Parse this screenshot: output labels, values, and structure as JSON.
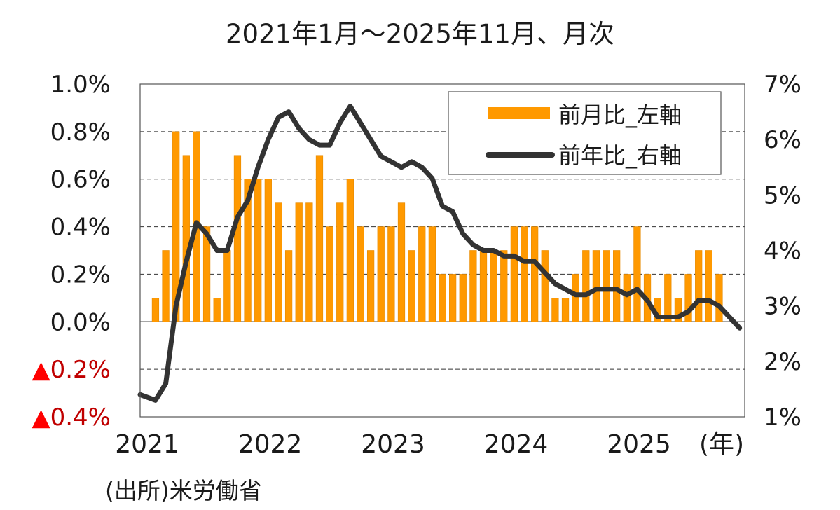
{
  "title": "2021年1月～2025年11月、月次",
  "source": "(出所)米労働省",
  "colors": {
    "bar": "#FF9900",
    "bar_edge": "#E68A00",
    "line": "#333333",
    "neg_triangle": "#FF0000",
    "neg_text": "#C00000",
    "grid": "#333333"
  },
  "chart_data": {
    "type": "bar+line",
    "title": "2021年1月～2025年11月、月次",
    "xlabel": "(年)",
    "ylabel_left": "前月比",
    "ylabel_right": "前年比",
    "legend": [
      "前月比_左軸",
      "前年比_右軸"
    ],
    "legend_position": "upper right",
    "grid": true,
    "left_axis": {
      "ylim": [
        -0.4,
        1.0
      ],
      "ticks": [
        "▲0.4%",
        "▲0.2%",
        "0.0%",
        "0.2%",
        "0.4%",
        "0.6%",
        "0.8%",
        "1.0%"
      ]
    },
    "right_axis": {
      "ylim": [
        1,
        7
      ],
      "ticks": [
        "1%",
        "2%",
        "3%",
        "4%",
        "5%",
        "6%",
        "7%"
      ]
    },
    "x_tick_labels": [
      "2021",
      "2022",
      "2023",
      "2024",
      "2025"
    ],
    "x": [
      "2021-01",
      "2021-02",
      "2021-03",
      "2021-04",
      "2021-05",
      "2021-06",
      "2021-07",
      "2021-08",
      "2021-09",
      "2021-10",
      "2021-11",
      "2021-12",
      "2022-01",
      "2022-02",
      "2022-03",
      "2022-04",
      "2022-05",
      "2022-06",
      "2022-07",
      "2022-08",
      "2022-09",
      "2022-10",
      "2022-11",
      "2022-12",
      "2023-01",
      "2023-02",
      "2023-03",
      "2023-04",
      "2023-05",
      "2023-06",
      "2023-07",
      "2023-08",
      "2023-09",
      "2023-10",
      "2023-11",
      "2023-12",
      "2024-01",
      "2024-02",
      "2024-03",
      "2024-04",
      "2024-05",
      "2024-06",
      "2024-07",
      "2024-08",
      "2024-09",
      "2024-10",
      "2024-11",
      "2024-12",
      "2025-01",
      "2025-02",
      "2025-03",
      "2025-04",
      "2025-05",
      "2025-06",
      "2025-07",
      "2025-08",
      "2025-09",
      "2025-10",
      "2025-11"
    ],
    "series": [
      {
        "name": "前月比_左軸",
        "type": "bar",
        "axis": "left",
        "values": [
          0.0,
          0.1,
          0.3,
          0.8,
          0.7,
          0.8,
          0.4,
          0.1,
          0.3,
          0.7,
          0.6,
          0.6,
          0.6,
          0.5,
          0.3,
          0.5,
          0.5,
          0.7,
          0.4,
          0.5,
          0.6,
          0.4,
          0.3,
          0.4,
          0.4,
          0.5,
          0.3,
          0.4,
          0.4,
          0.2,
          0.2,
          0.2,
          0.3,
          0.3,
          0.3,
          0.3,
          0.4,
          0.4,
          0.4,
          0.3,
          0.1,
          0.1,
          0.2,
          0.3,
          0.3,
          0.3,
          0.3,
          0.2,
          0.4,
          0.2,
          0.1,
          0.2,
          0.1,
          0.2,
          0.3,
          0.3,
          0.2,
          null,
          null
        ]
      },
      {
        "name": "前年比_右軸",
        "type": "line",
        "axis": "right",
        "values": [
          1.4,
          1.3,
          1.6,
          3.0,
          3.8,
          4.5,
          4.3,
          4.0,
          4.0,
          4.6,
          4.9,
          5.5,
          6.0,
          6.4,
          6.5,
          6.2,
          6.0,
          5.9,
          5.9,
          6.3,
          6.6,
          6.3,
          6.0,
          5.7,
          5.6,
          5.5,
          5.6,
          5.5,
          5.3,
          4.8,
          4.7,
          4.3,
          4.1,
          4.0,
          4.0,
          3.9,
          3.9,
          3.8,
          3.8,
          3.6,
          3.4,
          3.3,
          3.2,
          3.2,
          3.3,
          3.3,
          3.3,
          3.2,
          3.3,
          3.1,
          2.8,
          2.8,
          2.8,
          2.9,
          3.1,
          3.1,
          3.0,
          null,
          2.6
        ]
      }
    ]
  },
  "x_axis_unit": "(年)"
}
